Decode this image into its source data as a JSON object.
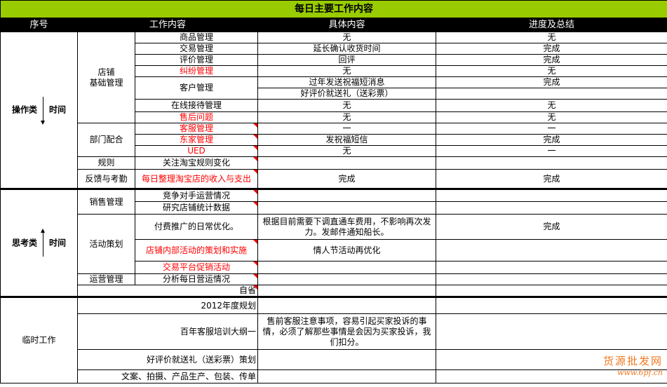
{
  "title": "每日主要工作内容",
  "headers": [
    "序号",
    "工作内容",
    "具体内容",
    "进度及总结"
  ],
  "section1": {
    "label": "操作类",
    "time": "时间",
    "group1": "店铺\n基础管理",
    "rows1": [
      {
        "item": "商品管理",
        "detail": "无",
        "progress": "无"
      },
      {
        "item": "交易管理",
        "detail": "延长确认收货时间",
        "progress": "完成"
      },
      {
        "item": "评价管理",
        "detail": "回评",
        "progress": "完成"
      },
      {
        "item": "纠纷管理",
        "detail": "无",
        "progress": "无"
      },
      {
        "item": "客户管理",
        "detail": "过年发送祝福短消息",
        "progress": "完成",
        "detail2": "好评价就送礼（送彩票）",
        "progress2": ""
      },
      {
        "item": "在线接待管理",
        "detail": "无",
        "progress": "无"
      },
      {
        "item": "售后问题",
        "detail": "无",
        "progress": "无"
      }
    ],
    "group2": "部门配合",
    "rows2": [
      {
        "item": "客服管理",
        "detail": "一",
        "progress": "一"
      },
      {
        "item": "东家管理",
        "detail": "发祝福短信",
        "progress": "完成"
      },
      {
        "item": "UED",
        "detail": "无",
        "progress": "一"
      }
    ],
    "group3": "规则",
    "row3": {
      "item": "关注淘宝规则变化",
      "detail": "",
      "progress": ""
    },
    "group4": "反馈与考勤",
    "row4": {
      "item": "每日整理淘宝店的收入与支出",
      "detail": "完成",
      "progress": "完成"
    }
  },
  "section2": {
    "label": "思考类",
    "time": "时间",
    "group1": "销售管理",
    "rows1": [
      {
        "item": "竞争对手运营情况"
      },
      {
        "item": "研究店铺统计数据"
      }
    ],
    "group2": "活动策划",
    "rows2": [
      {
        "item": "付费推广的日常优化。",
        "detail": "根据目前需要下调直通车费用，不影响再次发力。发邮件通知船长。",
        "progress": "完成"
      },
      {
        "item": "店铺内部活动的策划和实施",
        "detail": "情人节活动再优化",
        "progress": ""
      },
      {
        "item": "交易平台促销活动",
        "detail": "",
        "progress": ""
      }
    ],
    "group3": "运营管理",
    "row3": {
      "item": "分析每日营运情况"
    },
    "row4": {
      "item": "自省"
    }
  },
  "section3": {
    "label": "临时工作",
    "rows": [
      {
        "item": "2012年度规划",
        "detail": ""
      },
      {
        "item": "百年客服培训大纲一",
        "detail": "售前客服注意事项，容易引起买家投诉的事情，必须了解那些事情是会因为买家投诉，我们扣分。"
      },
      {
        "item": "好评价就送礼（送彩票）策划",
        "detail": ""
      },
      {
        "item": "文案、拍摄、产品生产、包装、传单",
        "detail": ""
      }
    ]
  },
  "watermark": {
    "name": "货源批发网",
    "url": "www.6pf.cn"
  },
  "colors": {
    "title_bg": "#99cc00",
    "header_bg": "#000000",
    "highlight_text": "#ff0000",
    "watermark": "#f07820"
  }
}
